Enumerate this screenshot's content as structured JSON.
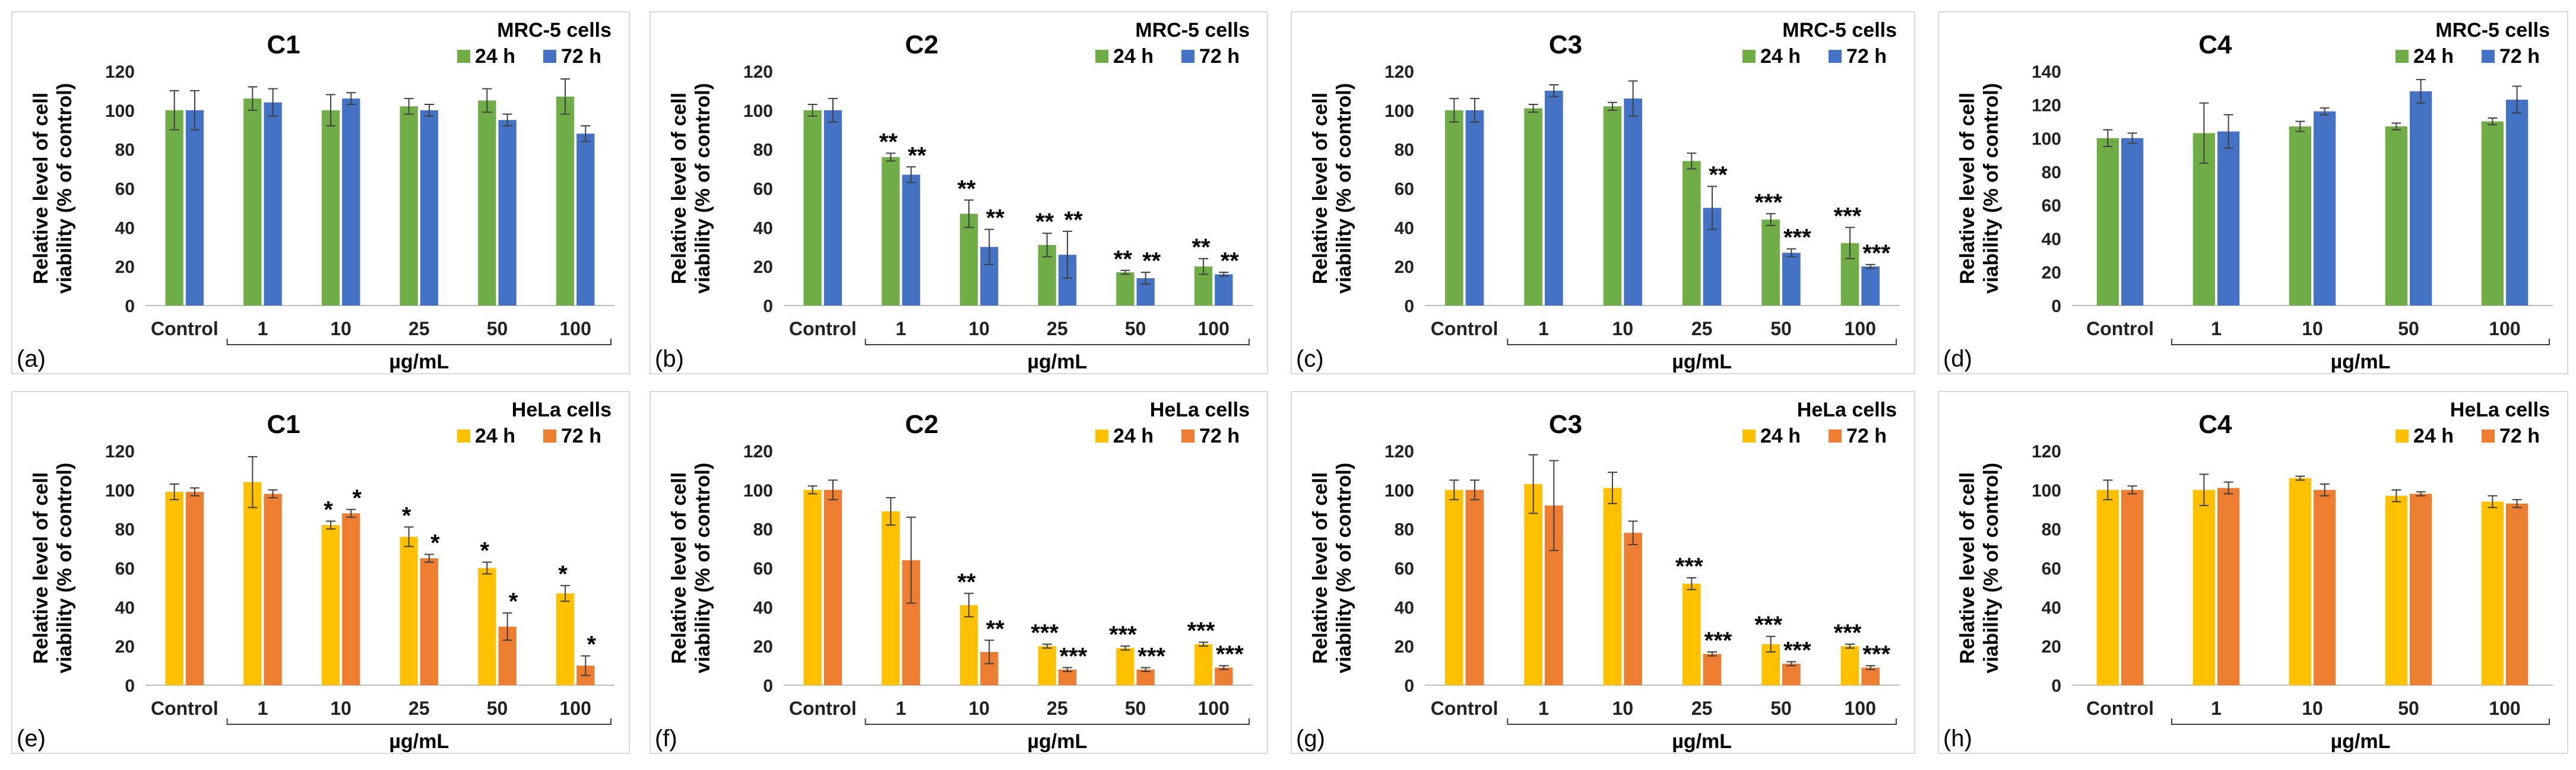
{
  "figure": {
    "ylabel_line1": "Relative level of cell",
    "ylabel_line2": "viability (% of control)",
    "unit_label": "µg/mL"
  },
  "chart_data": [
    {
      "type": "bar",
      "panel": "(a)",
      "title": "C1",
      "cells": "MRC-5 cells",
      "categories": [
        "Control",
        "1",
        "10",
        "25",
        "50",
        "100"
      ],
      "xlabel": "µg/mL",
      "ylabel": "Relative level of cell viability (% of control)",
      "ylim": [
        0,
        120
      ],
      "yticks": [
        0,
        20,
        40,
        60,
        80,
        100,
        120
      ],
      "series": [
        {
          "name": "24 h",
          "color": "#70ad47",
          "values": [
            100,
            106,
            100,
            102,
            105,
            107
          ],
          "errors": [
            10,
            6,
            8,
            4,
            6,
            9
          ],
          "sig": [
            "",
            "",
            "",
            "",
            "",
            ""
          ]
        },
        {
          "name": "72 h",
          "color": "#4472c4",
          "values": [
            100,
            104,
            106,
            100,
            95,
            88
          ],
          "errors": [
            10,
            7,
            3,
            3,
            3,
            4
          ],
          "sig": [
            "",
            "",
            "",
            "",
            "",
            ""
          ]
        }
      ]
    },
    {
      "type": "bar",
      "panel": "(b)",
      "title": "C2",
      "cells": "MRC-5 cells",
      "categories": [
        "Control",
        "1",
        "10",
        "25",
        "50",
        "100"
      ],
      "xlabel": "µg/mL",
      "ylabel": "Relative level of cell viability (% of control)",
      "ylim": [
        0,
        120
      ],
      "yticks": [
        0,
        20,
        40,
        60,
        80,
        100,
        120
      ],
      "series": [
        {
          "name": "24 h",
          "color": "#70ad47",
          "values": [
            100,
            76,
            47,
            31,
            17,
            20
          ],
          "errors": [
            3,
            2,
            7,
            6,
            1,
            4
          ],
          "sig": [
            "",
            "**",
            "**",
            "**",
            "**",
            "**"
          ]
        },
        {
          "name": "72 h",
          "color": "#4472c4",
          "values": [
            100,
            67,
            30,
            26,
            14,
            16
          ],
          "errors": [
            6,
            4,
            9,
            12,
            3,
            1
          ],
          "sig": [
            "",
            "**",
            "**",
            "**",
            "**",
            "**"
          ]
        }
      ]
    },
    {
      "type": "bar",
      "panel": "(c)",
      "title": "C3",
      "cells": "MRC-5 cells",
      "categories": [
        "Control",
        "1",
        "10",
        "25",
        "50",
        "100"
      ],
      "xlabel": "µg/mL",
      "ylabel": "Relative level of cell viability (% of control)",
      "ylim": [
        0,
        120
      ],
      "yticks": [
        0,
        20,
        40,
        60,
        80,
        100,
        120
      ],
      "series": [
        {
          "name": "24 h",
          "color": "#70ad47",
          "values": [
            100,
            101,
            102,
            74,
            44,
            32
          ],
          "errors": [
            6,
            2,
            2,
            4,
            3,
            8
          ],
          "sig": [
            "",
            "",
            "",
            "",
            "***",
            "***"
          ]
        },
        {
          "name": "72 h",
          "color": "#4472c4",
          "values": [
            100,
            110,
            106,
            50,
            27,
            20
          ],
          "errors": [
            6,
            3,
            9,
            11,
            2,
            1
          ],
          "sig": [
            "",
            "",
            "",
            "**",
            "***",
            "***"
          ]
        }
      ]
    },
    {
      "type": "bar",
      "panel": "(d)",
      "title": "C4",
      "cells": "MRC-5 cells",
      "categories": [
        "Control",
        "1",
        "10",
        "50",
        "100"
      ],
      "xlabel": "µg/mL",
      "ylabel": "Relative level of cell viability (% of control)",
      "ylim": [
        0,
        140
      ],
      "yticks": [
        0,
        20,
        40,
        60,
        80,
        100,
        120,
        140
      ],
      "series": [
        {
          "name": "24 h",
          "color": "#70ad47",
          "values": [
            100,
            103,
            107,
            107,
            110
          ],
          "errors": [
            5,
            18,
            3,
            2,
            2
          ],
          "sig": [
            "",
            "",
            "",
            "",
            ""
          ]
        },
        {
          "name": "72 h",
          "color": "#4472c4",
          "values": [
            100,
            104,
            116,
            128,
            123
          ],
          "errors": [
            3,
            10,
            2,
            7,
            8
          ],
          "sig": [
            "",
            "",
            "",
            "",
            ""
          ]
        }
      ]
    },
    {
      "type": "bar",
      "panel": "(e)",
      "title": "C1",
      "cells": "HeLa cells",
      "categories": [
        "Control",
        "1",
        "10",
        "25",
        "50",
        "100"
      ],
      "xlabel": "µg/mL",
      "ylabel": "Relative level of cell viability (% of control)",
      "ylim": [
        0,
        120
      ],
      "yticks": [
        0,
        20,
        40,
        60,
        80,
        100,
        120
      ],
      "series": [
        {
          "name": "24 h",
          "color": "#ffc000",
          "values": [
            99,
            104,
            82,
            76,
            60,
            47
          ],
          "errors": [
            4,
            13,
            2,
            5,
            3,
            4
          ],
          "sig": [
            "",
            "",
            "*",
            "*",
            "*",
            "*"
          ]
        },
        {
          "name": "72 h",
          "color": "#ed7d31",
          "values": [
            99,
            98,
            88,
            65,
            30,
            10
          ],
          "errors": [
            2,
            2,
            2,
            2,
            7,
            5
          ],
          "sig": [
            "",
            "",
            "*",
            "*",
            "*",
            "*"
          ]
        }
      ]
    },
    {
      "type": "bar",
      "panel": "(f)",
      "title": "C2",
      "cells": "HeLa cells",
      "categories": [
        "Control",
        "1",
        "10",
        "25",
        "50",
        "100"
      ],
      "xlabel": "µg/mL",
      "ylabel": "Relative level of cell viability (% of control)",
      "ylim": [
        0,
        120
      ],
      "yticks": [
        0,
        20,
        40,
        60,
        80,
        100,
        120
      ],
      "series": [
        {
          "name": "24 h",
          "color": "#ffc000",
          "values": [
            100,
            89,
            41,
            20,
            19,
            21
          ],
          "errors": [
            2,
            7,
            6,
            1,
            1,
            1
          ],
          "sig": [
            "",
            "",
            "**",
            "***",
            "***",
            "***"
          ]
        },
        {
          "name": "72 h",
          "color": "#ed7d31",
          "values": [
            100,
            64,
            17,
            8,
            8,
            9
          ],
          "errors": [
            5,
            22,
            6,
            1,
            1,
            1
          ],
          "sig": [
            "",
            "",
            "**",
            "***",
            "***",
            "***"
          ]
        }
      ]
    },
    {
      "type": "bar",
      "panel": "(g)",
      "title": "C3",
      "cells": "HeLa cells",
      "categories": [
        "Control",
        "1",
        "10",
        "25",
        "50",
        "100"
      ],
      "xlabel": "µg/mL",
      "ylabel": "Relative level of cell viability (% of control)",
      "ylim": [
        0,
        120
      ],
      "yticks": [
        0,
        20,
        40,
        60,
        80,
        100,
        120
      ],
      "series": [
        {
          "name": "24 h",
          "color": "#ffc000",
          "values": [
            100,
            103,
            101,
            52,
            21,
            20
          ],
          "errors": [
            5,
            15,
            8,
            3,
            4,
            1
          ],
          "sig": [
            "",
            "",
            "",
            "***",
            "***",
            "***"
          ]
        },
        {
          "name": "72 h",
          "color": "#ed7d31",
          "values": [
            100,
            92,
            78,
            16,
            11,
            9
          ],
          "errors": [
            5,
            23,
            6,
            1,
            1,
            1
          ],
          "sig": [
            "",
            "",
            "",
            "***",
            "***",
            "***"
          ]
        }
      ]
    },
    {
      "type": "bar",
      "panel": "(h)",
      "title": "C4",
      "cells": "HeLa cells",
      "categories": [
        "Control",
        "1",
        "10",
        "50",
        "100"
      ],
      "xlabel": "µg/mL",
      "ylabel": "Relative level of cell viability (% of control)",
      "ylim": [
        0,
        120
      ],
      "yticks": [
        0,
        20,
        40,
        60,
        80,
        100,
        120
      ],
      "series": [
        {
          "name": "24 h",
          "color": "#ffc000",
          "values": [
            100,
            100,
            106,
            97,
            94
          ],
          "errors": [
            5,
            8,
            1,
            3,
            3
          ],
          "sig": [
            "",
            "",
            "",
            "",
            ""
          ]
        },
        {
          "name": "72 h",
          "color": "#ed7d31",
          "values": [
            100,
            101,
            100,
            98,
            93
          ],
          "errors": [
            2,
            3,
            3,
            1,
            2
          ],
          "sig": [
            "",
            "",
            "",
            "",
            ""
          ]
        }
      ]
    }
  ]
}
